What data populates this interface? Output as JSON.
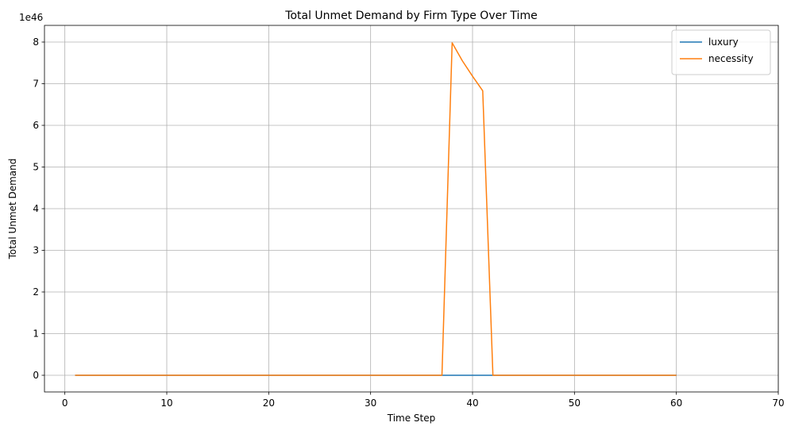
{
  "chart_data": {
    "type": "line",
    "title": "Total Unmet Demand by Firm Type Over Time",
    "xlabel": "Time Step",
    "ylabel": "Total Unmet Demand",
    "offset_text": "1e46",
    "xlim": [
      -2,
      70
    ],
    "ylim": [
      -0.4,
      8.4
    ],
    "xticks": [
      0,
      10,
      20,
      30,
      40,
      50,
      60,
      70
    ],
    "yticks": [
      0,
      1,
      2,
      3,
      4,
      5,
      6,
      7,
      8
    ],
    "xtick_labels": [
      "0",
      "10",
      "20",
      "30",
      "40",
      "50",
      "60",
      "70"
    ],
    "ytick_labels": [
      "0",
      "1",
      "2",
      "3",
      "4",
      "5",
      "6",
      "7",
      "8"
    ],
    "grid": true,
    "legend_position": "top-right",
    "series": [
      {
        "name": "luxury",
        "color": "#1f77b4",
        "points": [
          [
            1,
            0
          ],
          [
            60,
            0
          ]
        ]
      },
      {
        "name": "necessity",
        "color": "#ff7f0e",
        "points": [
          [
            1,
            0
          ],
          [
            37,
            0
          ],
          [
            38,
            7.98
          ],
          [
            39,
            7.55
          ],
          [
            40,
            7.18
          ],
          [
            41,
            6.83
          ],
          [
            42,
            0
          ],
          [
            60,
            0
          ]
        ]
      }
    ]
  }
}
